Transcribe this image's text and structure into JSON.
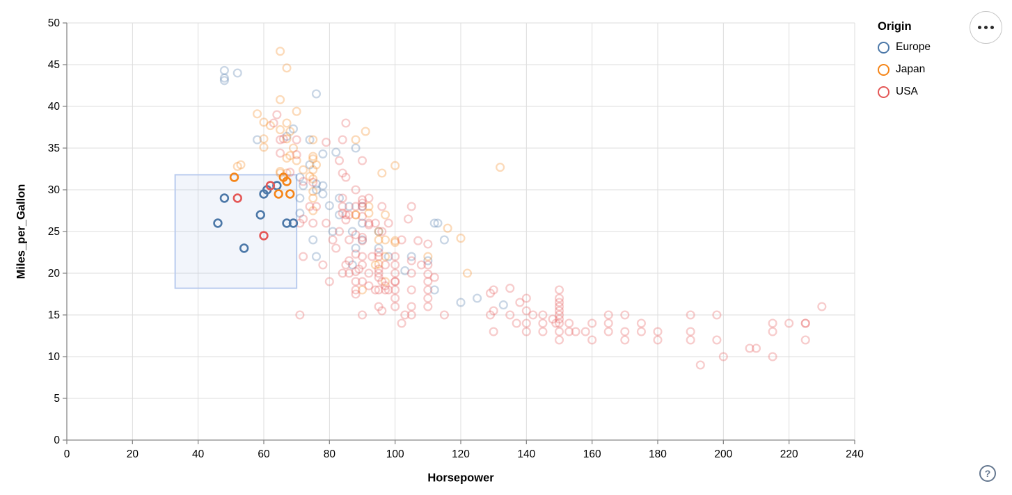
{
  "page": {
    "background": "#ffffff"
  },
  "controls": {
    "menu_button": "options-menu",
    "help_label": "?"
  },
  "chart_data": {
    "type": "scatter",
    "title": "",
    "xlabel": "Horsepower",
    "ylabel": "Miles_per_Gallon",
    "xlim": [
      0,
      240
    ],
    "ylim": [
      0,
      50
    ],
    "x_ticks": [
      0,
      20,
      40,
      60,
      80,
      100,
      120,
      140,
      160,
      180,
      200,
      220,
      240
    ],
    "y_ticks": [
      0,
      5,
      10,
      15,
      20,
      25,
      30,
      35,
      40,
      45,
      50
    ],
    "grid": true,
    "grid_color": "#dddddd",
    "axis_color": "#888888",
    "label_color": "#000000",
    "legend": {
      "title": "Origin",
      "position": "top-right",
      "entries": [
        {
          "label": "Europe",
          "color": "#4c78a8"
        },
        {
          "label": "Japan",
          "color": "#f58518"
        },
        {
          "label": "USA",
          "color": "#e45756"
        }
      ]
    },
    "brush": {
      "x": [
        33,
        70
      ],
      "y": [
        18.2,
        31.8
      ],
      "fill": "rgba(130,160,220,0.10)",
      "stroke": "#b9cbee"
    },
    "point_style": {
      "unselected_opacity": 0.3,
      "selected_opacity": 1
    },
    "series": [
      {
        "name": "Europe",
        "color": "#4c78a8",
        "selected": [
          [
            48,
            29
          ],
          [
            61,
            30
          ],
          [
            64,
            30.5
          ],
          [
            60,
            29.5
          ],
          [
            59,
            27
          ],
          [
            46,
            26
          ],
          [
            54,
            23
          ],
          [
            67,
            26
          ],
          [
            69,
            26
          ]
        ],
        "points": [
          [
            87,
            25
          ],
          [
            90,
            24
          ],
          [
            95,
            25
          ],
          [
            113,
            26
          ],
          [
            90,
            28
          ],
          [
            72,
            30.5
          ],
          [
            76,
            30
          ],
          [
            112,
            18
          ],
          [
            76,
            22
          ],
          [
            87,
            21
          ],
          [
            90,
            26
          ],
          [
            75,
            24
          ],
          [
            83,
            29
          ],
          [
            78,
            30.5
          ],
          [
            71,
            29
          ],
          [
            95,
            23
          ],
          [
            88,
            23
          ],
          [
            98,
            22
          ],
          [
            115,
            24
          ],
          [
            86,
            28
          ],
          [
            81,
            25
          ],
          [
            83,
            27
          ],
          [
            78,
            29.5
          ],
          [
            58,
            36
          ],
          [
            120,
            16.5
          ],
          [
            125,
            17
          ],
          [
            48,
            43.1
          ],
          [
            103,
            20.3
          ],
          [
            48,
            43.4
          ],
          [
            76,
            41.5
          ],
          [
            78,
            34.3
          ],
          [
            74,
            33
          ],
          [
            88,
            35
          ],
          [
            48,
            44.3
          ],
          [
            52,
            44
          ],
          [
            80,
            28.1
          ],
          [
            76,
            30.7
          ],
          [
            133,
            16.2
          ],
          [
            82,
            34.5
          ],
          [
            71,
            27.2
          ],
          [
            71,
            31.5
          ],
          [
            67,
            36.4
          ],
          [
            69,
            37.3
          ],
          [
            74,
            36
          ],
          [
            110,
            21.5
          ],
          [
            105,
            22
          ],
          [
            112,
            26
          ]
        ]
      },
      {
        "name": "Japan",
        "color": "#f58518",
        "selected": [
          [
            51,
            31.5
          ],
          [
            66,
            31.5
          ],
          [
            67,
            31
          ],
          [
            64.5,
            29.5
          ],
          [
            68,
            29.5
          ]
        ],
        "points": [
          [
            95,
            24
          ],
          [
            88,
            27
          ],
          [
            88,
            27
          ],
          [
            95,
            25
          ],
          [
            65,
            32
          ],
          [
            69,
            35
          ],
          [
            97,
            19
          ],
          [
            92,
            28
          ],
          [
            122,
            20
          ],
          [
            94,
            21
          ],
          [
            90,
            18
          ],
          [
            75,
            29
          ],
          [
            53,
            33
          ],
          [
            97,
            24
          ],
          [
            60,
            36.1
          ],
          [
            70,
            33.5
          ],
          [
            95,
            21.1
          ],
          [
            97,
            22
          ],
          [
            52,
            32.8
          ],
          [
            70,
            39.4
          ],
          [
            67,
            36.1
          ],
          [
            75,
            27.5
          ],
          [
            65,
            32.2
          ],
          [
            60,
            38.1
          ],
          [
            65,
            37.2
          ],
          [
            75,
            33.7
          ],
          [
            75,
            32.4
          ],
          [
            92,
            27.2
          ],
          [
            96,
            32
          ],
          [
            132,
            32.7
          ],
          [
            100,
            23.7
          ],
          [
            72,
            32.4
          ],
          [
            58,
            39.1
          ],
          [
            60,
            35.1
          ],
          [
            67,
            33.8
          ],
          [
            65,
            40.8
          ],
          [
            75,
            29.8
          ],
          [
            74,
            31.6
          ],
          [
            75,
            31.3
          ],
          [
            116,
            25.4
          ],
          [
            120,
            24.2
          ],
          [
            65,
            46.6
          ],
          [
            62,
            37.7
          ],
          [
            68,
            34.1
          ],
          [
            67,
            44.6
          ],
          [
            67,
            38
          ],
          [
            67,
            32
          ],
          [
            68,
            37
          ],
          [
            88,
            36
          ],
          [
            75,
            34
          ],
          [
            75,
            36
          ],
          [
            100,
            23.9
          ],
          [
            110,
            22
          ],
          [
            97,
            27
          ],
          [
            76,
            33
          ],
          [
            91,
            37
          ],
          [
            100,
            32.9
          ]
        ]
      },
      {
        "name": "USA",
        "color": "#e45756",
        "selected": [
          [
            52,
            29
          ],
          [
            62,
            30.5
          ],
          [
            60,
            24.5
          ]
        ],
        "points": [
          [
            130,
            18
          ],
          [
            165,
            15
          ],
          [
            150,
            18
          ],
          [
            150,
            16
          ],
          [
            140,
            17
          ],
          [
            198,
            15
          ],
          [
            220,
            14
          ],
          [
            215,
            14
          ],
          [
            225,
            14
          ],
          [
            190,
            15
          ],
          [
            170,
            15
          ],
          [
            160,
            14
          ],
          [
            150,
            15
          ],
          [
            225,
            14
          ],
          [
            215,
            10
          ],
          [
            200,
            10
          ],
          [
            210,
            11
          ],
          [
            193,
            9
          ],
          [
            165,
            14
          ],
          [
            175,
            14
          ],
          [
            153,
            14
          ],
          [
            150,
            14
          ],
          [
            180,
            12
          ],
          [
            170,
            13
          ],
          [
            175,
            13
          ],
          [
            165,
            13
          ],
          [
            153,
            13
          ],
          [
            208,
            11
          ],
          [
            155,
            13
          ],
          [
            160,
            12
          ],
          [
            190,
            13
          ],
          [
            145,
            13
          ],
          [
            137,
            14
          ],
          [
            150,
            13
          ],
          [
            198,
            12
          ],
          [
            158,
            13
          ],
          [
            150,
            12
          ],
          [
            215,
            13
          ],
          [
            225,
            12
          ],
          [
            145,
            14
          ],
          [
            230,
            16
          ],
          [
            145,
            15
          ],
          [
            170,
            12
          ],
          [
            190,
            12
          ],
          [
            180,
            13
          ],
          [
            149,
            14
          ],
          [
            140,
            14
          ],
          [
            150,
            17
          ],
          [
            150,
            16.5
          ],
          [
            142,
            15
          ],
          [
            148,
            14.5
          ],
          [
            129,
            15
          ],
          [
            138,
            16.5
          ],
          [
            135,
            18.2
          ],
          [
            129,
            17.6
          ],
          [
            140,
            15.5
          ],
          [
            150,
            15.5
          ],
          [
            130,
            13
          ],
          [
            140,
            13
          ],
          [
            150,
            14.5
          ],
          [
            135,
            15
          ],
          [
            130,
            15.5
          ],
          [
            95,
            22
          ],
          [
            97,
            18
          ],
          [
            85,
            21
          ],
          [
            90,
            21
          ],
          [
            100,
            19
          ],
          [
            105,
            16
          ],
          [
            100,
            17
          ],
          [
            88,
            19
          ],
          [
            100,
            18
          ],
          [
            110,
            18
          ],
          [
            72,
            22
          ],
          [
            88,
            18
          ],
          [
            100,
            19
          ],
          [
            105,
            15
          ],
          [
            100,
            16
          ],
          [
            95,
            18
          ],
          [
            110,
            17
          ],
          [
            110,
            19
          ],
          [
            105,
            18
          ],
          [
            95,
            20
          ],
          [
            92,
            20
          ],
          [
            97,
            21
          ],
          [
            100,
            20
          ],
          [
            98,
            18
          ],
          [
            95,
            16
          ],
          [
            110,
            16
          ],
          [
            103,
            15
          ],
          [
            115,
            15
          ],
          [
            97,
            18.5
          ],
          [
            78,
            21
          ],
          [
            80,
            19
          ],
          [
            95,
            19.5
          ],
          [
            86,
            21.5
          ],
          [
            81,
            24
          ],
          [
            100,
            22
          ],
          [
            95,
            22.5
          ],
          [
            90,
            22
          ],
          [
            110,
            21
          ],
          [
            105,
            21.5
          ],
          [
            112,
            19.5
          ],
          [
            88,
            20.2
          ],
          [
            95,
            20.5
          ],
          [
            90,
            24.3
          ],
          [
            88,
            24.6
          ],
          [
            85,
            26.4
          ],
          [
            110,
            23.5
          ],
          [
            90,
            23.9
          ],
          [
            110,
            19.9
          ],
          [
            88,
            22.3
          ],
          [
            105,
            20
          ],
          [
            84,
            20
          ],
          [
            92,
            18.5
          ],
          [
            94,
            18
          ],
          [
            88,
            17.5
          ],
          [
            86,
            20
          ],
          [
            90,
            19
          ],
          [
            96,
            19
          ],
          [
            100,
            21
          ],
          [
            89,
            20.5
          ],
          [
            93,
            22
          ],
          [
            90,
            15
          ],
          [
            96,
            15.5
          ],
          [
            102,
            14
          ],
          [
            90,
            28
          ],
          [
            72,
            26.5
          ],
          [
            75,
            26
          ],
          [
            83,
            25
          ],
          [
            68,
            32.1
          ],
          [
            66,
            36.1
          ],
          [
            75,
            30.9
          ],
          [
            70,
            34.2
          ],
          [
            63,
            38
          ],
          [
            83,
            33.5
          ],
          [
            90,
            28.8
          ],
          [
            84,
            28
          ],
          [
            90,
            26.8
          ],
          [
            65,
            36
          ],
          [
            65,
            34.4
          ],
          [
            72,
            31
          ],
          [
            70,
            36
          ],
          [
            88,
            28
          ],
          [
            85,
            27
          ],
          [
            84,
            29
          ],
          [
            92,
            25.8
          ],
          [
            90,
            28.4
          ],
          [
            84,
            32
          ],
          [
            84,
            27.2
          ],
          [
            85,
            38
          ],
          [
            64,
            39
          ],
          [
            86,
            27
          ],
          [
            74,
            28
          ],
          [
            76,
            28
          ],
          [
            79,
            26
          ],
          [
            71,
            26
          ],
          [
            92,
            26
          ],
          [
            96,
            25
          ],
          [
            71,
            15
          ],
          [
            94,
            26
          ],
          [
            84,
            36
          ],
          [
            85,
            31.5
          ],
          [
            105,
            28
          ],
          [
            104,
            26.5
          ],
          [
            79,
            35.7
          ],
          [
            90,
            33.5
          ],
          [
            88,
            30
          ],
          [
            92,
            29
          ],
          [
            96,
            28
          ],
          [
            98,
            26
          ],
          [
            102,
            24
          ],
          [
            108,
            21
          ],
          [
            107,
            23.9
          ],
          [
            86,
            24
          ],
          [
            82,
            23
          ]
        ]
      }
    ]
  }
}
